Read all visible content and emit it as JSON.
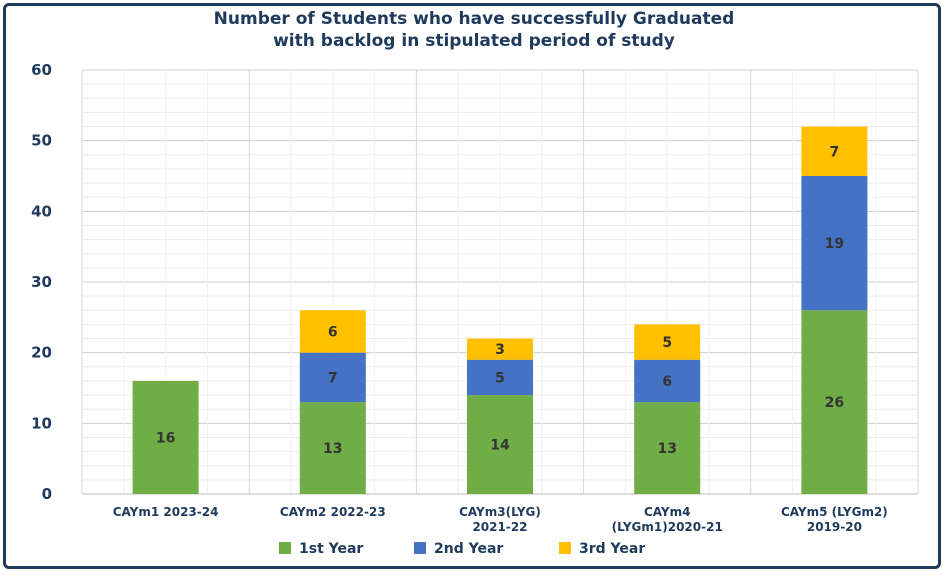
{
  "chart_data": {
    "type": "bar",
    "stacked": true,
    "title_line1": "Number of Students who have successfully Graduated",
    "title_line2": "with backlog in stipulated period of study",
    "categories": [
      [
        "CAYm1 2023-24"
      ],
      [
        "CAYm2 2022-23"
      ],
      [
        "CAYm3(LYG)",
        "2021-22"
      ],
      [
        "CAYm4",
        "(LYGm1)2020-21"
      ],
      [
        "CAYm5 (LYGm2)",
        "2019-20"
      ]
    ],
    "series": [
      {
        "name": "1st Year",
        "color": "#70ad47",
        "values": [
          16,
          13,
          14,
          13,
          26
        ]
      },
      {
        "name": "2nd Year",
        "color": "#4472c4",
        "values": [
          0,
          7,
          5,
          6,
          19
        ]
      },
      {
        "name": "3rd Year",
        "color": "#ffc000",
        "values": [
          0,
          6,
          3,
          5,
          7
        ]
      }
    ],
    "ylim": [
      0,
      60
    ],
    "yticks": [
      0,
      10,
      20,
      30,
      40,
      50,
      60
    ],
    "grid": true,
    "legend": "bottom"
  }
}
